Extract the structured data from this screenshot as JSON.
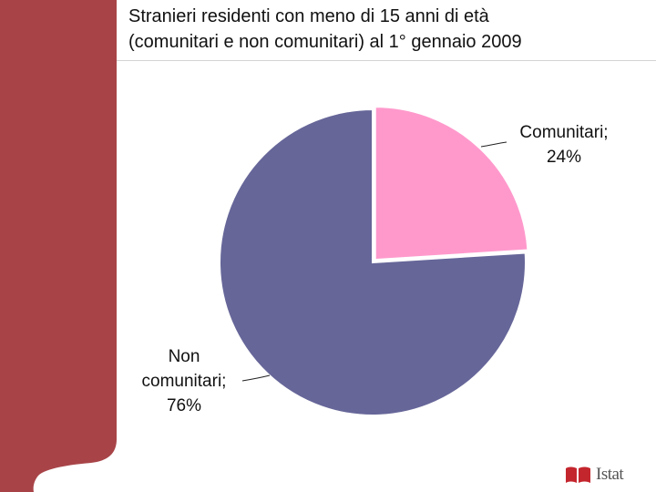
{
  "slide": {
    "title_line1": "Stranieri residenti con meno di 15 anni di età",
    "title_line2": "(comunitari e non comunitari)  al 1° gennaio 2009",
    "logo_text": "Istat",
    "sidebar_color": "#a84448"
  },
  "chart_data": {
    "type": "pie",
    "title": "Stranieri residenti con meno di 15 anni di età (comunitari e non comunitari)  al 1° gennaio 2009",
    "slices": [
      {
        "label": "Comunitari; 24%",
        "label_lines": [
          "Comunitari;",
          "24%"
        ],
        "value": 24,
        "color": "#ff99cc",
        "exploded": true
      },
      {
        "label": "Non comunitari; 76%",
        "label_lines": [
          "Non",
          "comunitari;",
          "76%"
        ],
        "value": 76,
        "color": "#666699",
        "exploded": false
      }
    ],
    "start_angle": "12 o'clock",
    "direction": "clockwise",
    "legend": "none"
  }
}
